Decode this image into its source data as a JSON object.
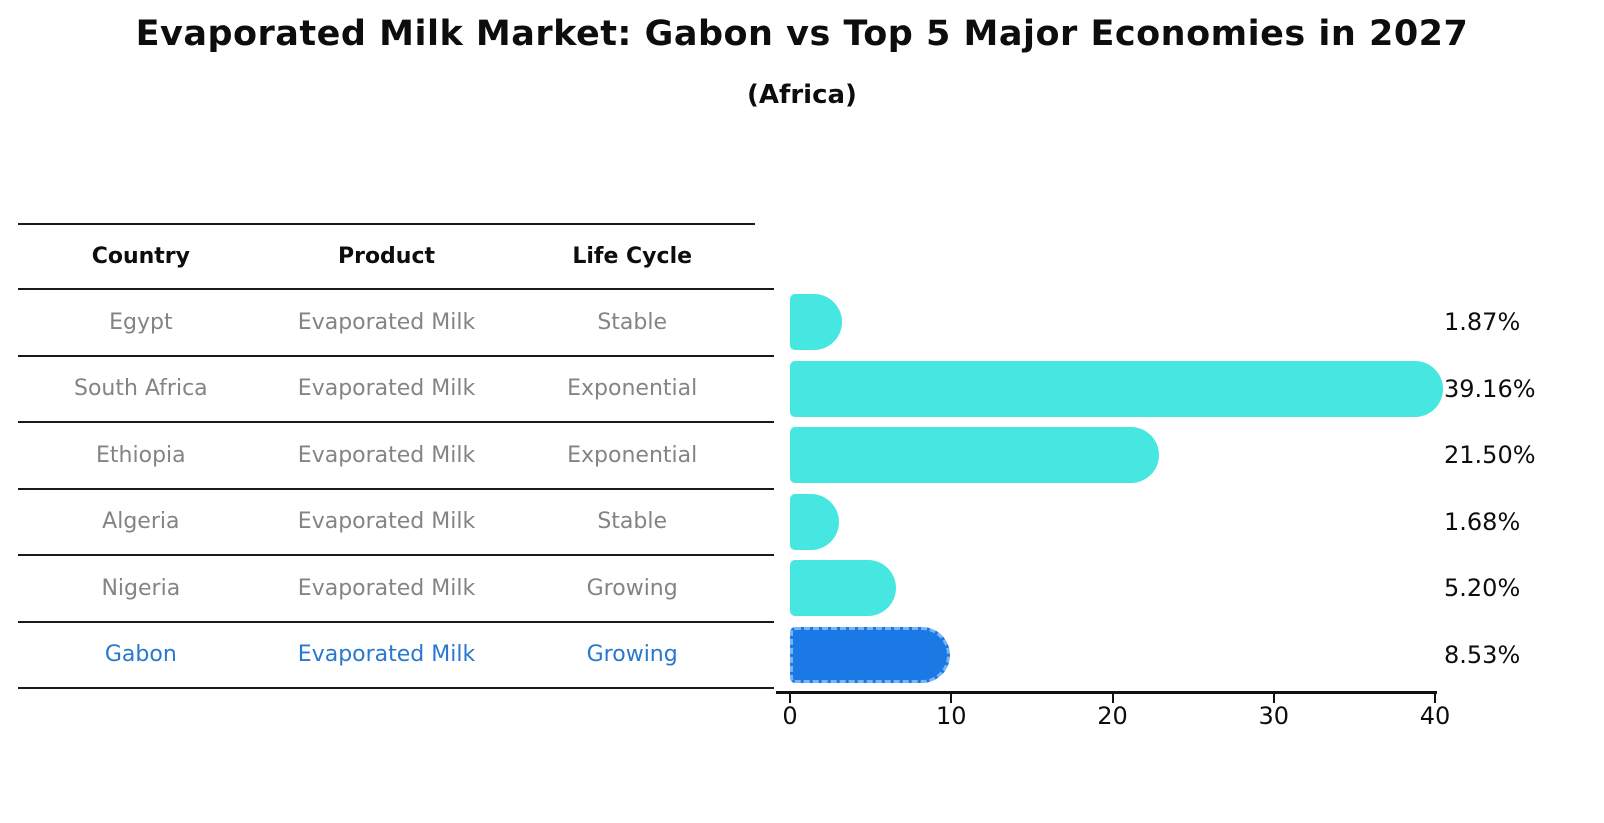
{
  "title": "Evaporated Milk Market: Gabon vs Top 5 Major Economies in 2027",
  "subtitle": "(Africa)",
  "table": {
    "headers": [
      "Country",
      "Product",
      "Life Cycle"
    ],
    "rows": [
      {
        "country": "Egypt",
        "product": "Evaporated Milk",
        "life_cycle": "Stable",
        "highlight": false
      },
      {
        "country": "South Africa",
        "product": "Evaporated Milk",
        "life_cycle": "Exponential",
        "highlight": false
      },
      {
        "country": "Ethiopia",
        "product": "Evaporated Milk",
        "life_cycle": "Exponential",
        "highlight": false
      },
      {
        "country": "Algeria",
        "product": "Evaporated Milk",
        "life_cycle": "Stable",
        "highlight": false
      },
      {
        "country": "Nigeria",
        "product": "Evaporated Milk",
        "life_cycle": "Growing",
        "highlight": false
      },
      {
        "country": "Gabon",
        "product": "Evaporated Milk",
        "life_cycle": "Growing",
        "highlight": true
      }
    ]
  },
  "chart_data": {
    "type": "bar",
    "orientation": "horizontal",
    "title": "Evaporated Milk Market: Gabon vs Top 5 Major Economies in 2027",
    "subtitle": "(Africa)",
    "categories": [
      "Egypt",
      "South Africa",
      "Ethiopia",
      "Algeria",
      "Nigeria",
      "Gabon"
    ],
    "values": [
      1.87,
      39.16,
      21.5,
      1.68,
      5.2,
      8.53
    ],
    "value_labels": [
      "1.87%",
      "39.16%",
      "21.50%",
      "1.68%",
      "5.20%",
      "8.53%"
    ],
    "xlim": [
      0,
      40
    ],
    "x_ticks": [
      0,
      10,
      20,
      30,
      40
    ],
    "grid": false,
    "legend": "none",
    "bar_color": "#45e7e0",
    "highlight_bar_color": "#1b79e6",
    "highlight_border_color": "#7ab5f3",
    "highlight_index": 5
  },
  "colors": {
    "text_dark": "#0d0d0d",
    "text_muted": "#848484",
    "text_highlight": "#2878cf",
    "line": "#1a1a1a"
  }
}
